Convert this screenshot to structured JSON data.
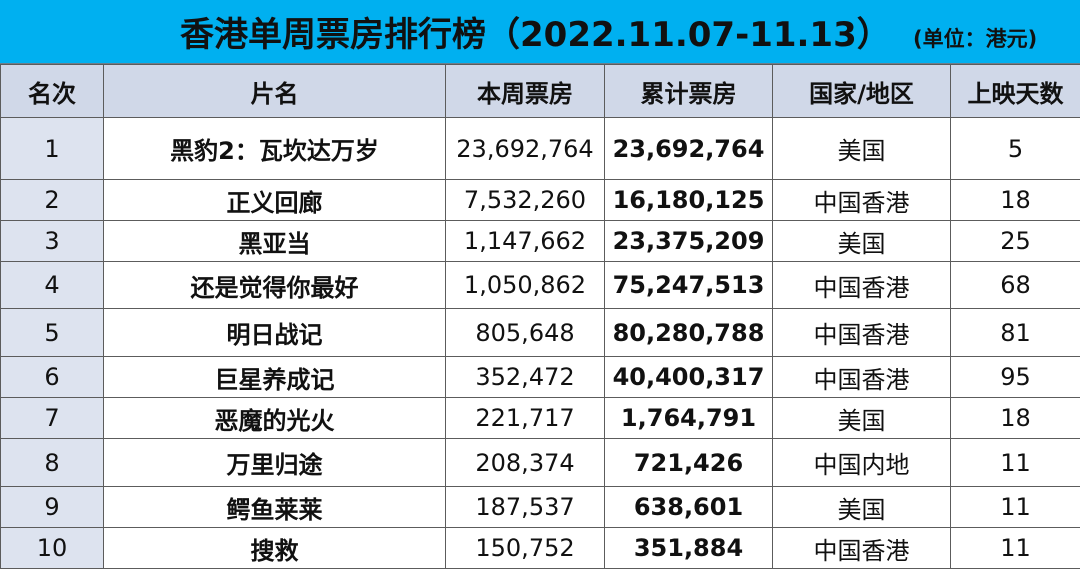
{
  "header": {
    "title": "香港单周票房排行榜（2022.11.07-11.13）",
    "unit": "(单位：港元)"
  },
  "colors": {
    "title_bg": "#00b0f0",
    "header_bg": "#d0d8e8",
    "rank_bg": "#dde3ef"
  },
  "table": {
    "columns": [
      "名次",
      "片名",
      "本周票房",
      "累计票房",
      "国家/地区",
      "上映天数"
    ],
    "rows": [
      {
        "rank": "1",
        "name": "黑豹2：瓦坎达万岁",
        "week": "23,692,764",
        "total": "23,692,764",
        "region": "美国",
        "days": "5"
      },
      {
        "rank": "2",
        "name": "正义回廊",
        "week": "7,532,260",
        "total": "16,180,125",
        "region": "中国香港",
        "days": "18"
      },
      {
        "rank": "3",
        "name": "黑亚当",
        "week": "1,147,662",
        "total": "23,375,209",
        "region": "美国",
        "days": "25"
      },
      {
        "rank": "4",
        "name": "还是觉得你最好",
        "week": "1,050,862",
        "total": "75,247,513",
        "region": "中国香港",
        "days": "68"
      },
      {
        "rank": "5",
        "name": "明日战记",
        "week": "805,648",
        "total": "80,280,788",
        "region": "中国香港",
        "days": "81"
      },
      {
        "rank": "6",
        "name": "巨星养成记",
        "week": "352,472",
        "total": "40,400,317",
        "region": "中国香港",
        "days": "95"
      },
      {
        "rank": "7",
        "name": "恶魔的光火",
        "week": "221,717",
        "total": "1,764,791",
        "region": "美国",
        "days": "18"
      },
      {
        "rank": "8",
        "name": "万里归途",
        "week": "208,374",
        "total": "721,426",
        "region": "中国内地",
        "days": "11"
      },
      {
        "rank": "9",
        "name": "鳄鱼莱莱",
        "week": "187,537",
        "total": "638,601",
        "region": "美国",
        "days": "11"
      },
      {
        "rank": "10",
        "name": "搜救",
        "week": "150,752",
        "total": "351,884",
        "region": "中国香港",
        "days": "11"
      }
    ]
  }
}
